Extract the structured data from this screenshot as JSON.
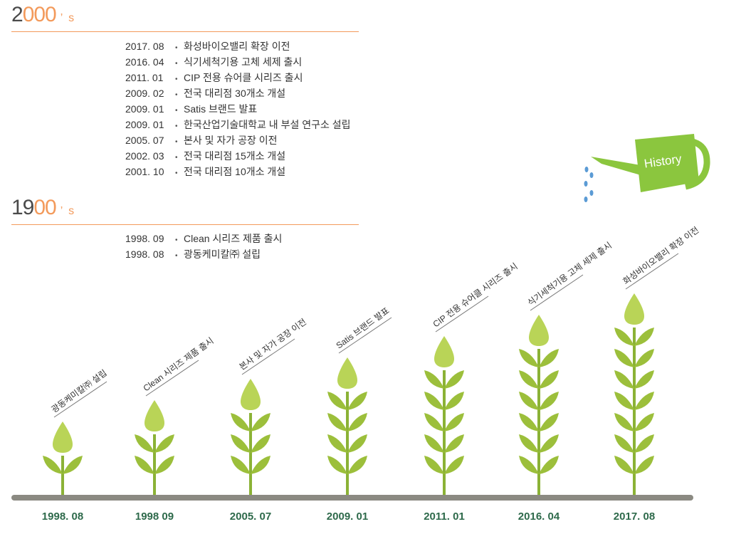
{
  "decades": [
    {
      "title_gray": "2",
      "title_orange": "000",
      "title_suffix": "’ s",
      "events": [
        {
          "date": "2017. 08",
          "text": "화성바이오밸리 확장 이전"
        },
        {
          "date": "2016. 04",
          "text": "식기세척기용 고체 세제 출시"
        },
        {
          "date": "2011. 01",
          "text": "CIP 전용 슈어클 시리즈 출시"
        },
        {
          "date": "2009. 02",
          "text": "전국 대리점 30개소 개설"
        },
        {
          "date": "2009. 01",
          "text": "Satis 브랜드 발표"
        },
        {
          "date": "2009. 01",
          "text": "한국산업기술대학교 내 부설 연구소 설립"
        },
        {
          "date": "2005. 07",
          "text": "본사 및 자가 공장 이전"
        },
        {
          "date": "2002. 03",
          "text": "전국 대리점 15개소 개설"
        },
        {
          "date": "2001. 10",
          "text": "전국 대리점 10개소 개설"
        }
      ]
    },
    {
      "title_gray": "19",
      "title_orange": "00",
      "title_suffix": "’ s",
      "events": [
        {
          "date": "1998. 09",
          "text": "Clean 시리즈 제품 출시"
        },
        {
          "date": "1998. 08",
          "text": "광동케미칼㈜ 설립"
        }
      ]
    }
  ],
  "bullet": "•",
  "watering_can_label": "History",
  "plants": [
    {
      "year": "1998. 08",
      "label": "광동케미칼㈜ 설립",
      "pairs": 1
    },
    {
      "year": "1998 09",
      "label": "Clean 시리즈 제품 출시",
      "pairs": 2
    },
    {
      "year": "2005. 07",
      "label": "본사 및 자가 공장 이전",
      "pairs": 3
    },
    {
      "year": "2009. 01",
      "label": "Satis 브랜드 발표",
      "pairs": 4
    },
    {
      "year": "2011. 01",
      "label": "CIP 전용 슈어클 시리즈 출시",
      "pairs": 5
    },
    {
      "year": "2016. 04",
      "label": "식기세척기용 고체 세제 출시",
      "pairs": 6
    },
    {
      "year": "2017. 08",
      "label": "화성바이오밸리 확장 이전",
      "pairs": 7
    }
  ],
  "colors": {
    "accent_orange": "#f39a5b",
    "leaf_green": "#9cbf3b",
    "bud_green": "#b9d457",
    "stem_green": "#8bb236",
    "ground": "#8b8a82",
    "year_text": "#2e6a4b",
    "can_green": "#8bc63e",
    "water_drop": "#5b9bd5"
  }
}
